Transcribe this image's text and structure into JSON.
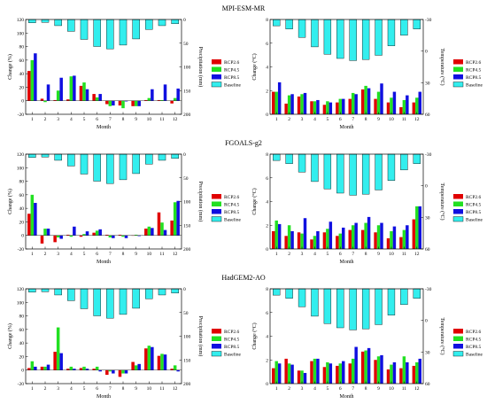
{
  "figure": {
    "rows": [
      {
        "model": "MPI-ESM-MR",
        "precip": {
          "change": [
            [
              44,
              3,
              1,
              2,
              22,
              10,
              -5,
              -7,
              -8,
              1,
              1,
              -4
            ],
            [
              60,
              -2,
              15,
              36,
              27,
              5,
              -8,
              -11,
              -8,
              4,
              1,
              4
            ],
            [
              70,
              24,
              34,
              37,
              17,
              10,
              -7,
              -1,
              -8,
              17,
              24,
              18
            ]
          ],
          "baseline": [
            7,
            6,
            13,
            25,
            42,
            57,
            62,
            54,
            41,
            21,
            13,
            9
          ]
        },
        "temp": {
          "change": [
            [
              1.9,
              0.9,
              1.5,
              1.1,
              0.8,
              1.0,
              1.3,
              2.1,
              1.3,
              1.0,
              0.6,
              1.0
            ],
            [
              1.9,
              1.6,
              1.7,
              1.1,
              1.1,
              1.3,
              1.8,
              2.4,
              1.9,
              1.4,
              1.2,
              1.4
            ],
            [
              2.7,
              1.7,
              1.8,
              1.2,
              1.0,
              1.3,
              1.7,
              2.2,
              2.6,
              1.9,
              1.6,
              1.9
            ]
          ],
          "baseline": [
            -24,
            -21,
            -13,
            -4,
            3,
            7,
            9,
            8,
            4,
            -5,
            -15,
            -21
          ]
        }
      },
      {
        "model": "FGOALS-g2",
        "precip": {
          "change": [
            [
              32,
              -12,
              -10,
              1,
              -2,
              4,
              1,
              1,
              0,
              10,
              34,
              22
            ],
            [
              60,
              10,
              -3,
              -2,
              2,
              7,
              -3,
              -2,
              1,
              13,
              19,
              49
            ],
            [
              48,
              10,
              -5,
              13,
              6,
              9,
              -4,
              -4,
              -1,
              11,
              8,
              51
            ]
          ],
          "baseline": [
            7,
            6,
            13,
            25,
            42,
            57,
            62,
            54,
            41,
            21,
            13,
            9
          ]
        },
        "temp": {
          "change": [
            [
              1.5,
              1.1,
              1.4,
              0.8,
              1.4,
              1.1,
              1.6,
              1.6,
              1.4,
              0.9,
              1.0,
              2.5
            ],
            [
              2.4,
              2.0,
              1.3,
              1.1,
              1.7,
              1.3,
              2.0,
              2.2,
              2.0,
              1.5,
              1.6,
              3.6
            ],
            [
              2.1,
              1.5,
              2.6,
              1.5,
              2.3,
              1.8,
              2.2,
              2.7,
              2.2,
              1.9,
              2.0,
              3.6
            ]
          ],
          "baseline": [
            -24,
            -21,
            -13,
            -4,
            3,
            7,
            9,
            8,
            4,
            -5,
            -15,
            -21
          ]
        }
      },
      {
        "model": "HadGEM2-AO",
        "precip": {
          "change": [
            [
              3,
              5,
              27,
              2,
              3,
              2,
              -7,
              -10,
              12,
              32,
              21,
              2
            ],
            [
              13,
              5,
              63,
              5,
              5,
              5,
              -2,
              -5,
              7,
              36,
              24,
              7
            ],
            [
              5,
              8,
              25,
              2,
              2,
              -2,
              -5,
              -5,
              9,
              34,
              23,
              -2
            ]
          ],
          "baseline": [
            7,
            6,
            13,
            25,
            42,
            57,
            62,
            54,
            41,
            21,
            13,
            9
          ]
        },
        "temp": {
          "change": [
            [
              1.3,
              2.1,
              1.1,
              1.9,
              1.4,
              1.5,
              1.7,
              2.7,
              2.0,
              1.2,
              1.3,
              1.5
            ],
            [
              1.9,
              1.7,
              1.1,
              2.1,
              1.8,
              1.7,
              2.1,
              2.8,
              2.3,
              1.6,
              2.3,
              1.8
            ],
            [
              1.7,
              1.6,
              0.9,
              2.1,
              1.7,
              1.9,
              3.1,
              3.0,
              2.4,
              1.8,
              1.8,
              2.1
            ]
          ],
          "baseline": [
            -24,
            -21,
            -13,
            -4,
            3,
            7,
            9,
            8,
            4,
            -5,
            -15,
            -21
          ]
        }
      }
    ],
    "months": [
      "1",
      "2",
      "3",
      "4",
      "5",
      "6",
      "7",
      "8",
      "9",
      "10",
      "11",
      "12"
    ],
    "x_label": "Month",
    "precip_left_label": "Change (%)",
    "precip_right_label": "Precipitation (mm)",
    "temp_left_label": "Change (°C)",
    "temp_right_label": "Temperature (°C)",
    "precip_left_ticks": [
      120,
      100,
      80,
      60,
      40,
      20,
      0,
      -20
    ],
    "precip_left_range": [
      -20,
      120
    ],
    "precip_right_ticks": [
      0,
      50,
      100,
      150,
      200
    ],
    "precip_right_range": [
      0,
      200
    ],
    "temp_left_ticks": [
      0,
      2,
      4,
      6,
      8
    ],
    "temp_left_range": [
      0,
      8
    ],
    "temp_right_ticks": [
      -30,
      0,
      30,
      60
    ],
    "temp_right_range": [
      -30,
      60
    ],
    "legend": [
      "RCP2.6",
      "RCP4.5",
      "RCP8.5",
      "Baseline"
    ],
    "colors": {
      "RCP2.6": "#e00000",
      "RCP4.5": "#22e022",
      "RCP8.5": "#1010e0",
      "Baseline": "#33eeee"
    }
  },
  "chart_data": [
    {
      "type": "bar",
      "title": "MPI-ESM-MR",
      "panel": "precipitation",
      "xlabel": "Month",
      "ylabel": "Change (%)",
      "y2label": "Precipitation (mm)",
      "categories": [
        "1",
        "2",
        "3",
        "4",
        "5",
        "6",
        "7",
        "8",
        "9",
        "10",
        "11",
        "12"
      ],
      "ylim": [
        -20,
        120
      ],
      "y2lim": [
        200,
        0
      ],
      "series": [
        {
          "name": "RCP2.6",
          "values": [
            44,
            3,
            1,
            2,
            22,
            10,
            -5,
            -7,
            -8,
            1,
            1,
            -4
          ]
        },
        {
          "name": "RCP4.5",
          "values": [
            60,
            -2,
            15,
            36,
            27,
            5,
            -8,
            -11,
            -8,
            4,
            1,
            4
          ]
        },
        {
          "name": "RCP8.5",
          "values": [
            70,
            24,
            34,
            37,
            17,
            10,
            -7,
            -1,
            -8,
            17,
            24,
            18
          ]
        },
        {
          "name": "Baseline",
          "axis": "right",
          "values": [
            7,
            6,
            13,
            25,
            42,
            57,
            62,
            54,
            41,
            21,
            13,
            9
          ]
        }
      ]
    },
    {
      "type": "bar",
      "title": "MPI-ESM-MR",
      "panel": "temperature",
      "xlabel": "Month",
      "ylabel": "Change (°C)",
      "y2label": "Temperature (°C)",
      "categories": [
        "1",
        "2",
        "3",
        "4",
        "5",
        "6",
        "7",
        "8",
        "9",
        "10",
        "11",
        "12"
      ],
      "ylim": [
        0,
        8
      ],
      "y2lim": [
        60,
        -30
      ],
      "series": [
        {
          "name": "RCP2.6",
          "values": [
            1.9,
            0.9,
            1.5,
            1.1,
            0.8,
            1.0,
            1.3,
            2.1,
            1.3,
            1.0,
            0.6,
            1.0
          ]
        },
        {
          "name": "RCP4.5",
          "values": [
            1.9,
            1.6,
            1.7,
            1.1,
            1.1,
            1.3,
            1.8,
            2.4,
            1.9,
            1.4,
            1.2,
            1.4
          ]
        },
        {
          "name": "RCP8.5",
          "values": [
            2.7,
            1.7,
            1.8,
            1.2,
            1.0,
            1.3,
            1.7,
            2.2,
            2.6,
            1.9,
            1.6,
            1.9
          ]
        },
        {
          "name": "Baseline",
          "axis": "right",
          "values": [
            -24,
            -21,
            -13,
            -4,
            3,
            7,
            9,
            8,
            4,
            -5,
            -15,
            -21
          ]
        }
      ]
    },
    {
      "type": "bar",
      "title": "FGOALS-g2",
      "panel": "precipitation",
      "xlabel": "Month",
      "ylabel": "Change (%)",
      "y2label": "Precipitation (mm)",
      "categories": [
        "1",
        "2",
        "3",
        "4",
        "5",
        "6",
        "7",
        "8",
        "9",
        "10",
        "11",
        "12"
      ],
      "ylim": [
        -20,
        120
      ],
      "y2lim": [
        200,
        0
      ],
      "series": [
        {
          "name": "RCP2.6",
          "values": [
            32,
            -12,
            -10,
            1,
            -2,
            4,
            1,
            1,
            0,
            10,
            34,
            22
          ]
        },
        {
          "name": "RCP4.5",
          "values": [
            60,
            10,
            -3,
            -2,
            2,
            7,
            -3,
            -2,
            1,
            13,
            19,
            49
          ]
        },
        {
          "name": "RCP8.5",
          "values": [
            48,
            10,
            -5,
            13,
            6,
            9,
            -4,
            -4,
            -1,
            11,
            8,
            51
          ]
        },
        {
          "name": "Baseline",
          "axis": "right",
          "values": [
            7,
            6,
            13,
            25,
            42,
            57,
            62,
            54,
            41,
            21,
            13,
            9
          ]
        }
      ]
    },
    {
      "type": "bar",
      "title": "FGOALS-g2",
      "panel": "temperature",
      "xlabel": "Month",
      "ylabel": "Change (°C)",
      "y2label": "Temperature (°C)",
      "categories": [
        "1",
        "2",
        "3",
        "4",
        "5",
        "6",
        "7",
        "8",
        "9",
        "10",
        "11",
        "12"
      ],
      "ylim": [
        0,
        8
      ],
      "y2lim": [
        60,
        -30
      ],
      "series": [
        {
          "name": "RCP2.6",
          "values": [
            1.5,
            1.1,
            1.4,
            0.8,
            1.4,
            1.1,
            1.6,
            1.6,
            1.4,
            0.9,
            1.0,
            2.5
          ]
        },
        {
          "name": "RCP4.5",
          "values": [
            2.4,
            2.0,
            1.3,
            1.1,
            1.7,
            1.3,
            2.0,
            2.2,
            2.0,
            1.5,
            1.6,
            3.6
          ]
        },
        {
          "name": "RCP8.5",
          "values": [
            2.1,
            1.5,
            2.6,
            1.5,
            2.3,
            1.8,
            2.2,
            2.7,
            2.2,
            1.9,
            2.0,
            3.6
          ]
        },
        {
          "name": "Baseline",
          "axis": "right",
          "values": [
            -24,
            -21,
            -13,
            -4,
            3,
            7,
            9,
            8,
            4,
            -5,
            -15,
            -21
          ]
        }
      ]
    },
    {
      "type": "bar",
      "title": "HadGEM2-AO",
      "panel": "precipitation",
      "xlabel": "Month",
      "ylabel": "Change (%)",
      "y2label": "Precipitation (mm)",
      "categories": [
        "1",
        "2",
        "3",
        "4",
        "5",
        "6",
        "7",
        "8",
        "9",
        "10",
        "11",
        "12"
      ],
      "ylim": [
        -20,
        120
      ],
      "y2lim": [
        200,
        0
      ],
      "series": [
        {
          "name": "RCP2.6",
          "values": [
            3,
            5,
            27,
            2,
            3,
            2,
            -7,
            -10,
            12,
            32,
            21,
            2
          ]
        },
        {
          "name": "RCP4.5",
          "values": [
            13,
            5,
            63,
            5,
            5,
            5,
            -2,
            -5,
            7,
            36,
            24,
            7
          ]
        },
        {
          "name": "RCP8.5",
          "values": [
            5,
            8,
            25,
            2,
            2,
            -2,
            -5,
            -5,
            9,
            34,
            23,
            -2
          ]
        },
        {
          "name": "Baseline",
          "axis": "right",
          "values": [
            7,
            6,
            13,
            25,
            42,
            57,
            62,
            54,
            41,
            21,
            13,
            9
          ]
        }
      ]
    },
    {
      "type": "bar",
      "title": "HadGEM2-AO",
      "panel": "temperature",
      "xlabel": "Month",
      "ylabel": "Change (°C)",
      "y2label": "Temperature (°C)",
      "categories": [
        "1",
        "2",
        "3",
        "4",
        "5",
        "6",
        "7",
        "8",
        "9",
        "10",
        "11",
        "12"
      ],
      "ylim": [
        0,
        8
      ],
      "y2lim": [
        60,
        -30
      ],
      "series": [
        {
          "name": "RCP2.6",
          "values": [
            1.3,
            2.1,
            1.1,
            1.9,
            1.4,
            1.5,
            1.7,
            2.7,
            2.0,
            1.2,
            1.3,
            1.5
          ]
        },
        {
          "name": "RCP4.5",
          "values": [
            1.9,
            1.7,
            1.1,
            2.1,
            1.8,
            1.7,
            2.1,
            2.8,
            2.3,
            1.6,
            2.3,
            1.8
          ]
        },
        {
          "name": "RCP8.5",
          "values": [
            1.7,
            1.6,
            0.9,
            2.1,
            1.7,
            1.9,
            3.1,
            3.0,
            2.4,
            1.8,
            1.8,
            2.1
          ]
        },
        {
          "name": "Baseline",
          "axis": "right",
          "values": [
            -24,
            -21,
            -13,
            -4,
            3,
            7,
            9,
            8,
            4,
            -5,
            -15,
            -21
          ]
        }
      ]
    }
  ]
}
